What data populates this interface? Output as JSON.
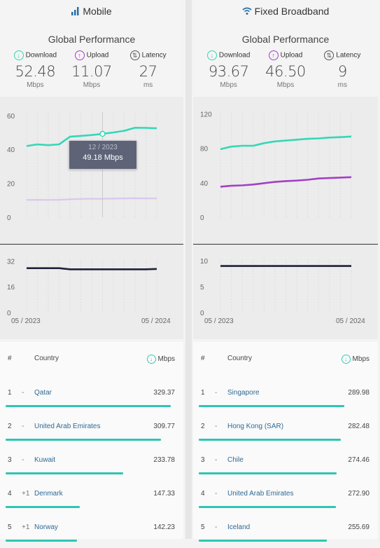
{
  "colors": {
    "download": "#35d7b8",
    "upload": "#a340c4",
    "latency": "#1f2238",
    "accent": "#2fc6b3"
  },
  "mobile": {
    "title": "Mobile",
    "icon": "signal-bars-icon",
    "subtitle": "Global Performance",
    "metrics": {
      "download": {
        "label": "Download",
        "value": "52.48",
        "unit": "Mbps"
      },
      "upload": {
        "label": "Upload",
        "value": "11.07",
        "unit": "Mbps"
      },
      "latency": {
        "label": "Latency",
        "value": "27",
        "unit": "ms"
      }
    },
    "tooltip": {
      "date": "12 / 2023",
      "value": "49.18 Mbps"
    },
    "x_labels": {
      "start": "05 / 2023",
      "end": "05 / 2024"
    },
    "table": {
      "headers": {
        "rank": "#",
        "country": "Country",
        "unit": "Mbps"
      },
      "rows": [
        {
          "rank": "1",
          "change": "-",
          "country": "Qatar",
          "speed": "329.37",
          "speed_value": 329.37
        },
        {
          "rank": "2",
          "change": "-",
          "country": "United Arab Emirates",
          "speed": "309.77",
          "speed_value": 309.77
        },
        {
          "rank": "3",
          "change": "-",
          "country": "Kuwait",
          "speed": "233.78",
          "speed_value": 233.78
        },
        {
          "rank": "4",
          "change": "+1",
          "country": "Denmark",
          "speed": "147.33",
          "speed_value": 147.33
        },
        {
          "rank": "5",
          "change": "+1",
          "country": "Norway",
          "speed": "142.23",
          "speed_value": 142.23
        }
      ]
    }
  },
  "broadband": {
    "title": "Fixed Broadband",
    "icon": "wifi-icon",
    "subtitle": "Global Performance",
    "metrics": {
      "download": {
        "label": "Download",
        "value": "93.67",
        "unit": "Mbps"
      },
      "upload": {
        "label": "Upload",
        "value": "46.50",
        "unit": "Mbps"
      },
      "latency": {
        "label": "Latency",
        "value": "9",
        "unit": "ms"
      }
    },
    "x_labels": {
      "start": "05 / 2023",
      "end": "05 / 2024"
    },
    "table": {
      "headers": {
        "rank": "#",
        "country": "Country",
        "unit": "Mbps"
      },
      "rows": [
        {
          "rank": "1",
          "change": "-",
          "country": "Singapore",
          "speed": "289.98",
          "speed_value": 289.98
        },
        {
          "rank": "2",
          "change": "-",
          "country": "Hong Kong (SAR)",
          "speed": "282.48",
          "speed_value": 282.48
        },
        {
          "rank": "3",
          "change": "-",
          "country": "Chile",
          "speed": "274.46",
          "speed_value": 274.46
        },
        {
          "rank": "4",
          "change": "-",
          "country": "United Arab Emirates",
          "speed": "272.90",
          "speed_value": 272.9
        },
        {
          "rank": "5",
          "change": "-",
          "country": "Iceland",
          "speed": "255.69",
          "speed_value": 255.69
        }
      ]
    }
  },
  "chart_data": [
    {
      "panel": "mobile",
      "type": "line",
      "x": [
        "05 / 2023",
        "06 / 2023",
        "07 / 2023",
        "08 / 2023",
        "09 / 2023",
        "10 / 2023",
        "11 / 2023",
        "12 / 2023",
        "01 / 2024",
        "02 / 2024",
        "03 / 2024",
        "04 / 2024",
        "05 / 2024"
      ],
      "series": [
        {
          "name": "Download",
          "values": [
            42.0,
            43.0,
            42.5,
            43.0,
            47.5,
            48.0,
            48.5,
            49.18,
            50.0,
            51.0,
            52.8,
            52.7,
            52.48
          ]
        },
        {
          "name": "Upload",
          "values": [
            10.2,
            10.3,
            10.2,
            10.3,
            10.6,
            10.8,
            10.9,
            10.9,
            11.0,
            11.1,
            11.2,
            11.1,
            11.07
          ]
        }
      ],
      "yticks": [
        0,
        20,
        40,
        60
      ],
      "ylim": [
        0,
        62
      ]
    },
    {
      "panel": "mobile",
      "type": "line",
      "x": [
        "05 / 2023",
        "06 / 2023",
        "07 / 2023",
        "08 / 2023",
        "09 / 2023",
        "10 / 2023",
        "11 / 2023",
        "12 / 2023",
        "01 / 2024",
        "02 / 2024",
        "03 / 2024",
        "04 / 2024",
        "05 / 2024"
      ],
      "series": [
        {
          "name": "Latency",
          "values": [
            27.5,
            27.5,
            27.5,
            27.5,
            26.8,
            26.8,
            26.8,
            26.8,
            26.8,
            26.8,
            26.8,
            26.8,
            27
          ]
        }
      ],
      "yticks": [
        0,
        16,
        32
      ],
      "ylim": [
        0,
        33
      ]
    },
    {
      "panel": "broadband",
      "type": "line",
      "x": [
        "05 / 2023",
        "06 / 2023",
        "07 / 2023",
        "08 / 2023",
        "09 / 2023",
        "10 / 2023",
        "11 / 2023",
        "12 / 2023",
        "01 / 2024",
        "02 / 2024",
        "03 / 2024",
        "04 / 2024",
        "05 / 2024"
      ],
      "series": [
        {
          "name": "Download",
          "values": [
            79,
            82,
            83,
            83,
            86,
            88,
            89,
            90,
            91,
            91.5,
            92.5,
            93,
            93.67
          ]
        },
        {
          "name": "Upload",
          "values": [
            35.5,
            36.5,
            37,
            38,
            39.5,
            41,
            42,
            42.5,
            43.5,
            45,
            45.5,
            46,
            46.5
          ]
        }
      ],
      "yticks": [
        0,
        40,
        80,
        120
      ],
      "ylim": [
        0,
        122
      ]
    },
    {
      "panel": "broadband",
      "type": "line",
      "x": [
        "05 / 2023",
        "06 / 2023",
        "07 / 2023",
        "08 / 2023",
        "09 / 2023",
        "10 / 2023",
        "11 / 2023",
        "12 / 2023",
        "01 / 2024",
        "02 / 2024",
        "03 / 2024",
        "04 / 2024",
        "05 / 2024"
      ],
      "series": [
        {
          "name": "Latency",
          "values": [
            9,
            9,
            9,
            9,
            9,
            9,
            9,
            9,
            9,
            9,
            9,
            9,
            9
          ]
        }
      ],
      "yticks": [
        0,
        5,
        10
      ],
      "ylim": [
        0,
        10.3
      ]
    }
  ]
}
